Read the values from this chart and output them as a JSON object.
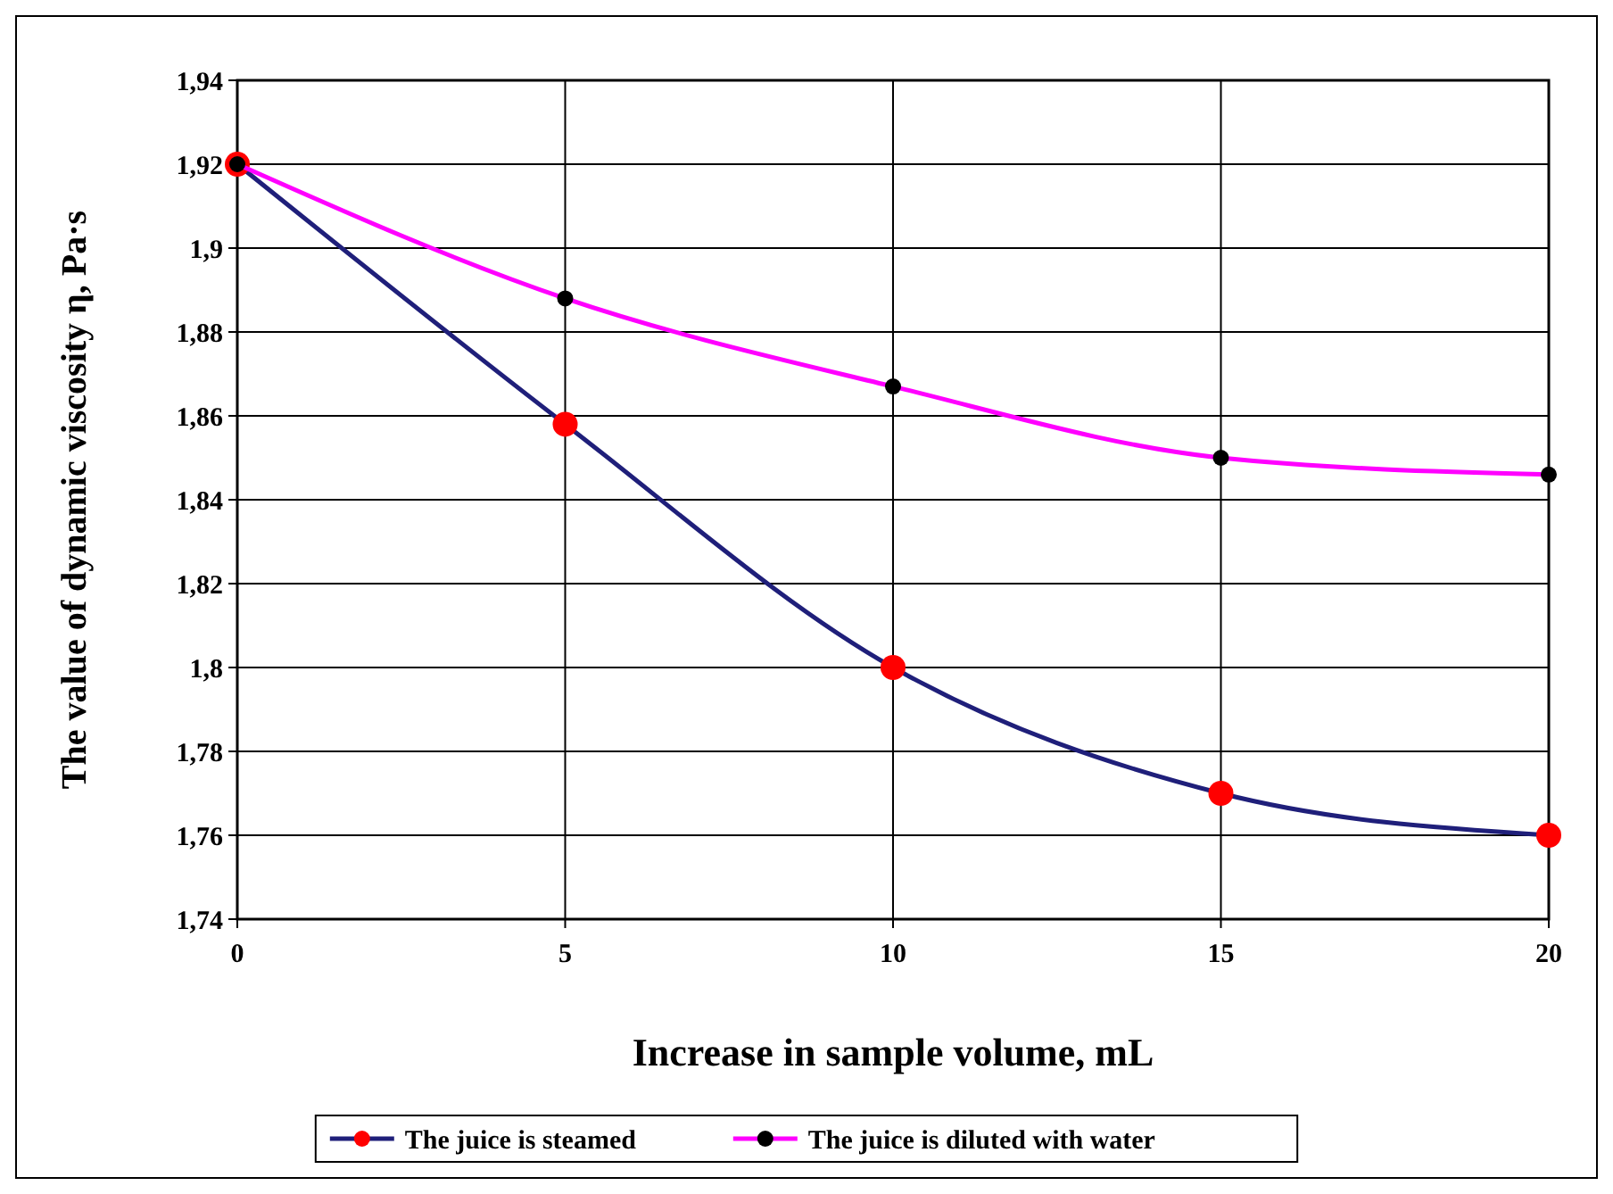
{
  "chart_data": {
    "type": "line",
    "xlabel": "Increase in sample volume, mL",
    "ylabel": "The value of dynamic viscosity η, Pa·s",
    "x": [
      0,
      5,
      10,
      15,
      20
    ],
    "xlim": [
      0,
      20
    ],
    "xticks": [
      0,
      5,
      10,
      15,
      20
    ],
    "ylim": [
      1.74,
      1.94
    ],
    "yticks": [
      {
        "value": 1.74,
        "label": "1,74"
      },
      {
        "value": 1.76,
        "label": "1,76"
      },
      {
        "value": 1.78,
        "label": "1,78"
      },
      {
        "value": 1.8,
        "label": "1,8"
      },
      {
        "value": 1.82,
        "label": "1,82"
      },
      {
        "value": 1.84,
        "label": "1,84"
      },
      {
        "value": 1.86,
        "label": "1,86"
      },
      {
        "value": 1.88,
        "label": "1,88"
      },
      {
        "value": 1.9,
        "label": "1,9"
      },
      {
        "value": 1.92,
        "label": "1,92"
      },
      {
        "value": 1.94,
        "label": "1,94"
      }
    ],
    "series": [
      {
        "name": "The juice is steamed",
        "color": "#1f1f7a",
        "colors": [
          "#ff0000",
          "#ff0000",
          "#ff0000",
          "#ff0000",
          "#ff0000"
        ],
        "values": [
          1.92,
          1.858,
          1.8,
          1.77,
          1.76
        ]
      },
      {
        "name": "The juice is diluted with water",
        "color": "#ff00ff",
        "colors": [
          "#000000",
          "#000000",
          "#000000",
          "#000000",
          "#000000"
        ],
        "values": [
          1.92,
          1.888,
          1.867,
          1.85,
          1.846
        ]
      }
    ],
    "grid": true,
    "legend": "bottom",
    "marker": "circle",
    "line_style": "solid"
  }
}
